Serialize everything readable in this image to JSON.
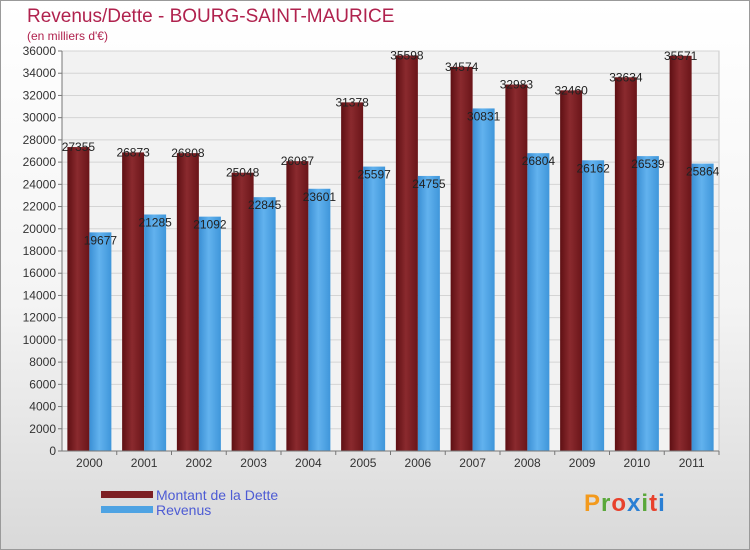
{
  "title": "Revenus/Dette - BOURG-SAINT-MAURICE",
  "subtitle": "(en milliers d'€)",
  "logo": {
    "letters": [
      "P",
      "r",
      "o",
      "x",
      "i",
      "t",
      "i"
    ]
  },
  "colors": {
    "dette": "#7d1f23",
    "revenus": "#4ea3e3",
    "title": "#b0224e",
    "legend_text": "#4d5bd4",
    "logo_letters": [
      "#f39a1d",
      "#5aa83a",
      "#e8412c",
      "#2a7fd4",
      "#5aa83a",
      "#e8412c",
      "#2a7fd4"
    ]
  },
  "chart_data": {
    "type": "bar",
    "categories": [
      "2000",
      "2001",
      "2002",
      "2003",
      "2004",
      "2005",
      "2006",
      "2007",
      "2008",
      "2009",
      "2010",
      "2011"
    ],
    "series": [
      {
        "name": "Montant de la Dette",
        "values": [
          27355,
          26873,
          26808,
          25048,
          26087,
          31378,
          35598,
          34574,
          32983,
          32460,
          33634,
          35571
        ]
      },
      {
        "name": "Revenus",
        "values": [
          19677,
          21285,
          21092,
          22845,
          23601,
          25597,
          24755,
          30831,
          26804,
          26162,
          26539,
          25864
        ]
      }
    ],
    "ylim": [
      0,
      36000
    ],
    "yticks": [
      0,
      2000,
      4000,
      6000,
      8000,
      10000,
      12000,
      14000,
      16000,
      18000,
      20000,
      22000,
      24000,
      26000,
      28000,
      30000,
      32000,
      34000,
      36000
    ],
    "legend_position": "bottom-left",
    "grid": true
  }
}
